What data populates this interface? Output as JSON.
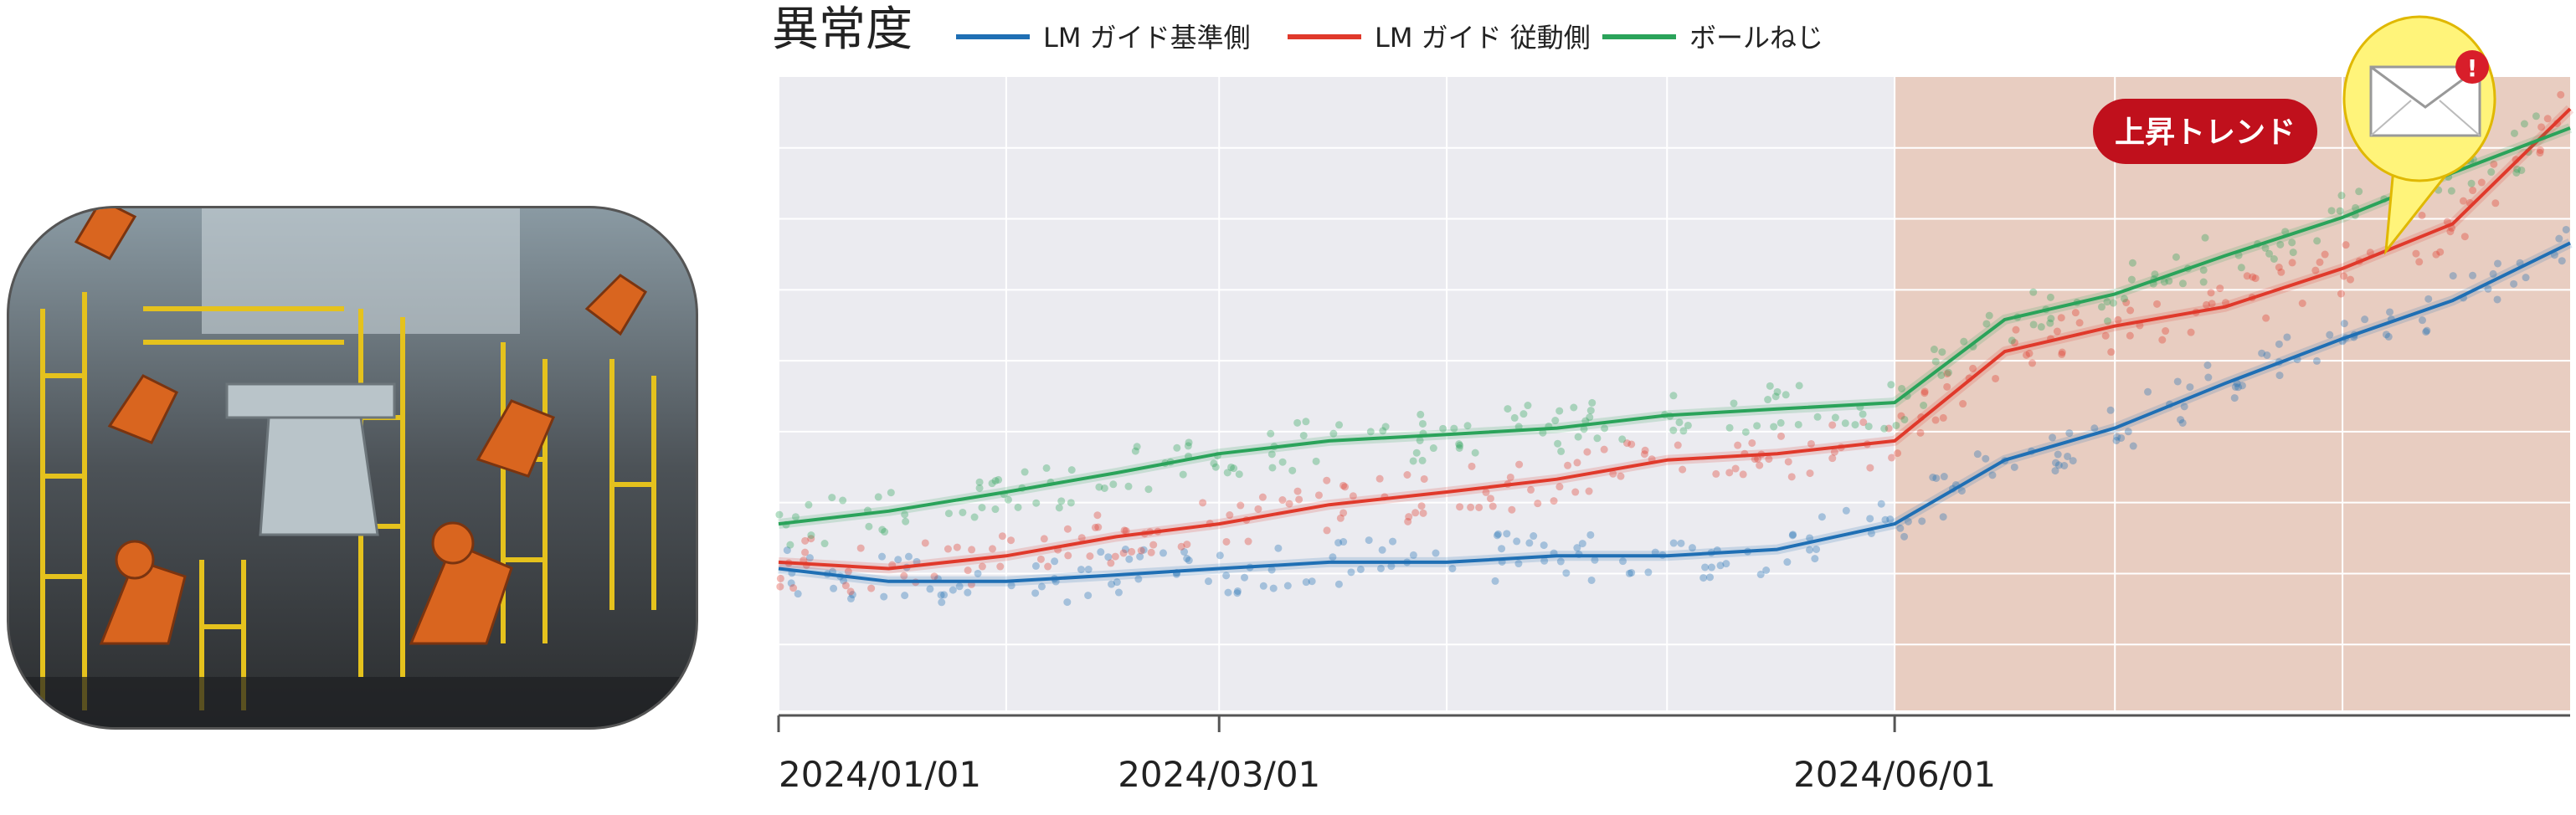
{
  "photo": {
    "icon": "factory-robot-line-photo"
  },
  "chart_data": {
    "type": "line",
    "title": "異常度",
    "xlabel": "",
    "ylabel": "",
    "x_tick_labels": [
      "2024/01/01",
      "2024/03/01",
      "2024/06/01"
    ],
    "x_ticks": [
      "2024/01/01",
      "2024/03/01",
      "2024/06/01"
    ],
    "xlim": [
      "2024/01/01",
      "2024/09/01"
    ],
    "ylim": [
      0,
      1
    ],
    "grid": true,
    "legend_position": "top",
    "highlight": {
      "label": "上昇トレンド",
      "x_start": "2024/06/01",
      "x_end": "2024/09/01",
      "color": "#e8c8b8"
    },
    "series": [
      {
        "name": "LM ガイド基準側",
        "color": "#1f6fb4",
        "x": [
          "2024/01/01",
          "2024/01/16",
          "2024/02/01",
          "2024/02/16",
          "2024/03/01",
          "2024/03/16",
          "2024/04/01",
          "2024/04/16",
          "2024/05/01",
          "2024/05/16",
          "2024/06/01",
          "2024/06/16",
          "2024/07/01",
          "2024/07/16",
          "2024/08/01",
          "2024/08/16",
          "2024/09/01"
        ],
        "values": [
          0.23,
          0.21,
          0.21,
          0.22,
          0.23,
          0.24,
          0.24,
          0.25,
          0.25,
          0.26,
          0.3,
          0.4,
          0.45,
          0.52,
          0.59,
          0.65,
          0.74
        ]
      },
      {
        "name": "LM ガイド 従動側",
        "color": "#e0392b",
        "x": [
          "2024/01/01",
          "2024/01/16",
          "2024/02/01",
          "2024/02/16",
          "2024/03/01",
          "2024/03/16",
          "2024/04/01",
          "2024/04/16",
          "2024/05/01",
          "2024/05/16",
          "2024/06/01",
          "2024/06/16",
          "2024/07/01",
          "2024/07/16",
          "2024/08/01",
          "2024/08/16",
          "2024/09/01"
        ],
        "values": [
          0.24,
          0.23,
          0.25,
          0.28,
          0.3,
          0.33,
          0.35,
          0.37,
          0.4,
          0.41,
          0.43,
          0.57,
          0.61,
          0.64,
          0.7,
          0.77,
          0.95
        ]
      },
      {
        "name": "ボールねじ",
        "color": "#2aa35a",
        "x": [
          "2024/01/01",
          "2024/01/16",
          "2024/02/01",
          "2024/02/16",
          "2024/03/01",
          "2024/03/16",
          "2024/04/01",
          "2024/04/16",
          "2024/05/01",
          "2024/05/16",
          "2024/06/01",
          "2024/06/16",
          "2024/07/01",
          "2024/07/16",
          "2024/08/01",
          "2024/08/16",
          "2024/09/01"
        ],
        "values": [
          0.3,
          0.32,
          0.35,
          0.38,
          0.41,
          0.43,
          0.44,
          0.45,
          0.47,
          0.48,
          0.49,
          0.62,
          0.66,
          0.72,
          0.78,
          0.85,
          0.92
        ]
      }
    ]
  },
  "badge": {
    "label": "上昇トレンド"
  },
  "notification": {
    "icon": "mail-alert-icon",
    "color": "#fff47a"
  }
}
